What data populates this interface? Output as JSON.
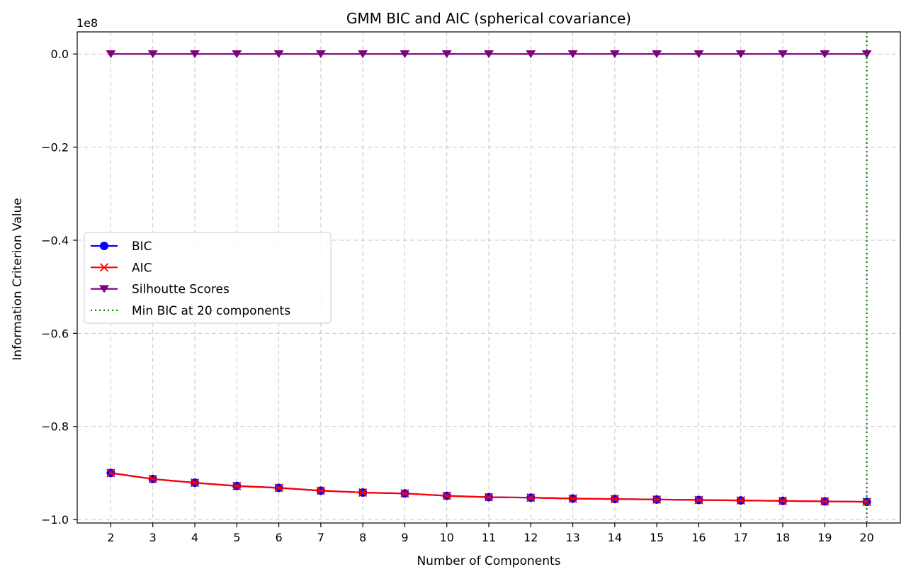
{
  "chart_data": {
    "type": "line",
    "title": "GMM BIC and AIC (spherical covariance)",
    "xlabel": "Number of Components",
    "ylabel": "Information Criterion Value",
    "y_offset_label": "1e8",
    "x": [
      2,
      3,
      4,
      5,
      6,
      7,
      8,
      9,
      10,
      11,
      12,
      13,
      14,
      15,
      16,
      17,
      18,
      19,
      20
    ],
    "xlim": [
      1.2,
      20.8
    ],
    "ylim": [
      -1.0075,
      0.0475
    ],
    "ylim_units_note": "y values below are in units of 1e8",
    "x_ticks": [
      "2",
      "3",
      "4",
      "5",
      "6",
      "7",
      "8",
      "9",
      "10",
      "11",
      "12",
      "13",
      "14",
      "15",
      "16",
      "17",
      "18",
      "19",
      "20"
    ],
    "y_ticks": [
      0.0,
      -0.2,
      -0.4,
      -0.6,
      -0.8,
      -1.0
    ],
    "y_tick_labels": [
      "0.0",
      "−0.2",
      "−0.4",
      "−0.6",
      "−0.8",
      "−1.0"
    ],
    "grid": true,
    "legend_position": "center-left",
    "series": [
      {
        "name": "BIC",
        "color": "#0000ff",
        "marker": "circle",
        "values": [
          -0.9,
          -0.913,
          -0.921,
          -0.928,
          -0.932,
          -0.938,
          -0.942,
          -0.944,
          -0.949,
          -0.952,
          -0.953,
          -0.955,
          -0.956,
          -0.957,
          -0.958,
          -0.959,
          -0.96,
          -0.961,
          -0.962
        ]
      },
      {
        "name": "AIC",
        "color": "#ff0000",
        "marker": "x",
        "values": [
          -0.9,
          -0.913,
          -0.921,
          -0.928,
          -0.932,
          -0.938,
          -0.942,
          -0.944,
          -0.949,
          -0.952,
          -0.953,
          -0.955,
          -0.956,
          -0.957,
          -0.958,
          -0.959,
          -0.96,
          -0.961,
          -0.962
        ]
      },
      {
        "name": "Silhoutte Scores",
        "color": "#800080",
        "marker": "triangle-down",
        "values": [
          0,
          0,
          0,
          0,
          0,
          0,
          0,
          0,
          0,
          0,
          0,
          0,
          0,
          0,
          0,
          0,
          0,
          0,
          0
        ]
      }
    ],
    "vline": {
      "name": "Min BIC at 20 components",
      "x": 20,
      "color": "#008000",
      "style": "dotted"
    }
  }
}
